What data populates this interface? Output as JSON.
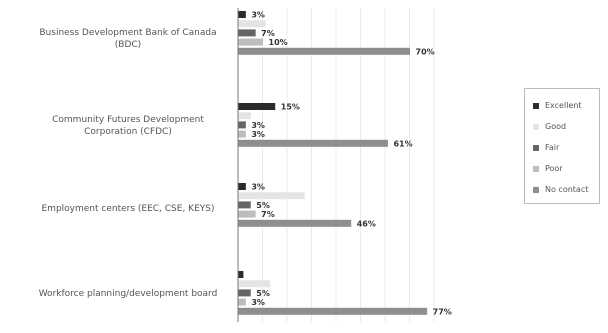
{
  "chart_data": {
    "type": "bar",
    "orientation": "horizontal",
    "categories": [
      "Business Development Bank of Canada (BDC)",
      "Community Futures Development Corporation (CFDC)",
      "Employment centers (EEC, CSE, KEYS)",
      "Workforce planning/development board"
    ],
    "series": [
      {
        "name": "Excellent",
        "color": "#2b2b2b",
        "values": [
          3,
          15,
          3,
          2
        ]
      },
      {
        "name": "Good",
        "color": "#e4e4e4",
        "values": [
          11,
          5,
          27,
          13
        ]
      },
      {
        "name": "Fair",
        "color": "#666666",
        "values": [
          7,
          3,
          5,
          5
        ]
      },
      {
        "name": "Poor",
        "color": "#bdbdbd",
        "values": [
          10,
          3,
          7,
          3
        ]
      },
      {
        "name": "No contact",
        "color": "#8e8e8e",
        "values": [
          70,
          61,
          46,
          77
        ]
      }
    ],
    "value_labels": [
      [
        "3%",
        "",
        "7%",
        "10%",
        "70%"
      ],
      [
        "15%",
        "",
        "3%",
        "3%",
        "61%"
      ],
      [
        "3%",
        "",
        "5%",
        "7%",
        "46%"
      ],
      [
        "",
        "",
        "5%",
        "3%",
        "77%"
      ]
    ],
    "xlim": [
      0,
      80
    ],
    "grid": true,
    "legend_position": "right"
  }
}
